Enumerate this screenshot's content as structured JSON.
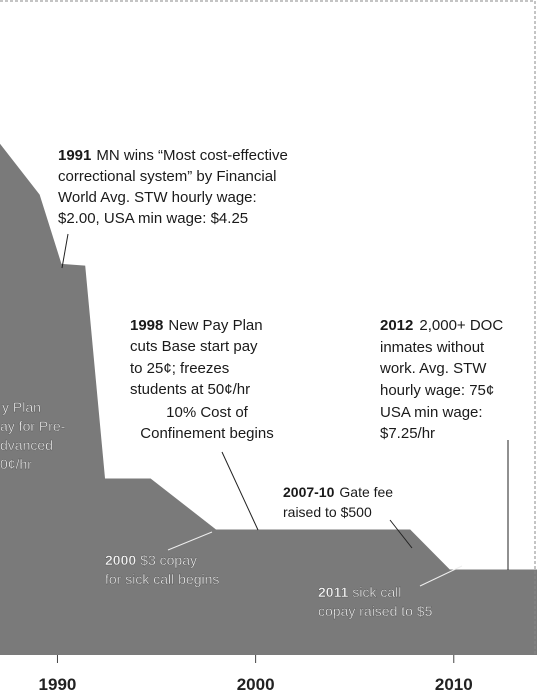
{
  "chart_data": {
    "type": "area",
    "x": [
      1987.1,
      1989.1,
      1990.2,
      1991.4,
      1992.4,
      1994.7,
      1998,
      2007.8,
      2009.8,
      2014.2
    ],
    "values": [
      2.81,
      2.53,
      2.15,
      2.14,
      0.97,
      0.97,
      0.69,
      0.69,
      0.47,
      0.47
    ],
    "color": "#7a7a7a",
    "xlim": [
      1987.1,
      2014.2
    ],
    "xticks": [
      1990,
      2000,
      2010
    ],
    "ylim": [
      0,
      3.6
    ],
    "annotations": [
      {
        "bold": "1991",
        "lines": [
          "MN wins “Most cost-effective",
          "correctional system” by Financial",
          "World  Avg. STW hourly wage:",
          "$2.00, USA min wage: $4.25"
        ]
      },
      {
        "bold": "1998",
        "lines": [
          "New Pay Plan",
          "cuts Base start pay",
          "to 25¢; freezes",
          "students at 50¢/hr",
          "10% Cost of",
          "Confinement begins"
        ]
      },
      {
        "bold": "2012",
        "lines": [
          "2,000+ DOC",
          "inmates without",
          "work. Avg. STW",
          "hourly wage: 75¢",
          "USA min wage:",
          "$7.25/hr"
        ]
      },
      {
        "bold": "2007-10",
        "lines": [
          "Gate fee",
          "raised to $500"
        ]
      },
      {
        "bold": "2000",
        "lines": [
          "$3 copay",
          "for sick call begins"
        ]
      },
      {
        "bold": "2011",
        "lines": [
          "sick call",
          "copay raised to $5"
        ]
      },
      {
        "lines": [
          "y Plan",
          "ay for Pre-",
          "dvanced",
          "0¢/hr"
        ]
      }
    ]
  }
}
